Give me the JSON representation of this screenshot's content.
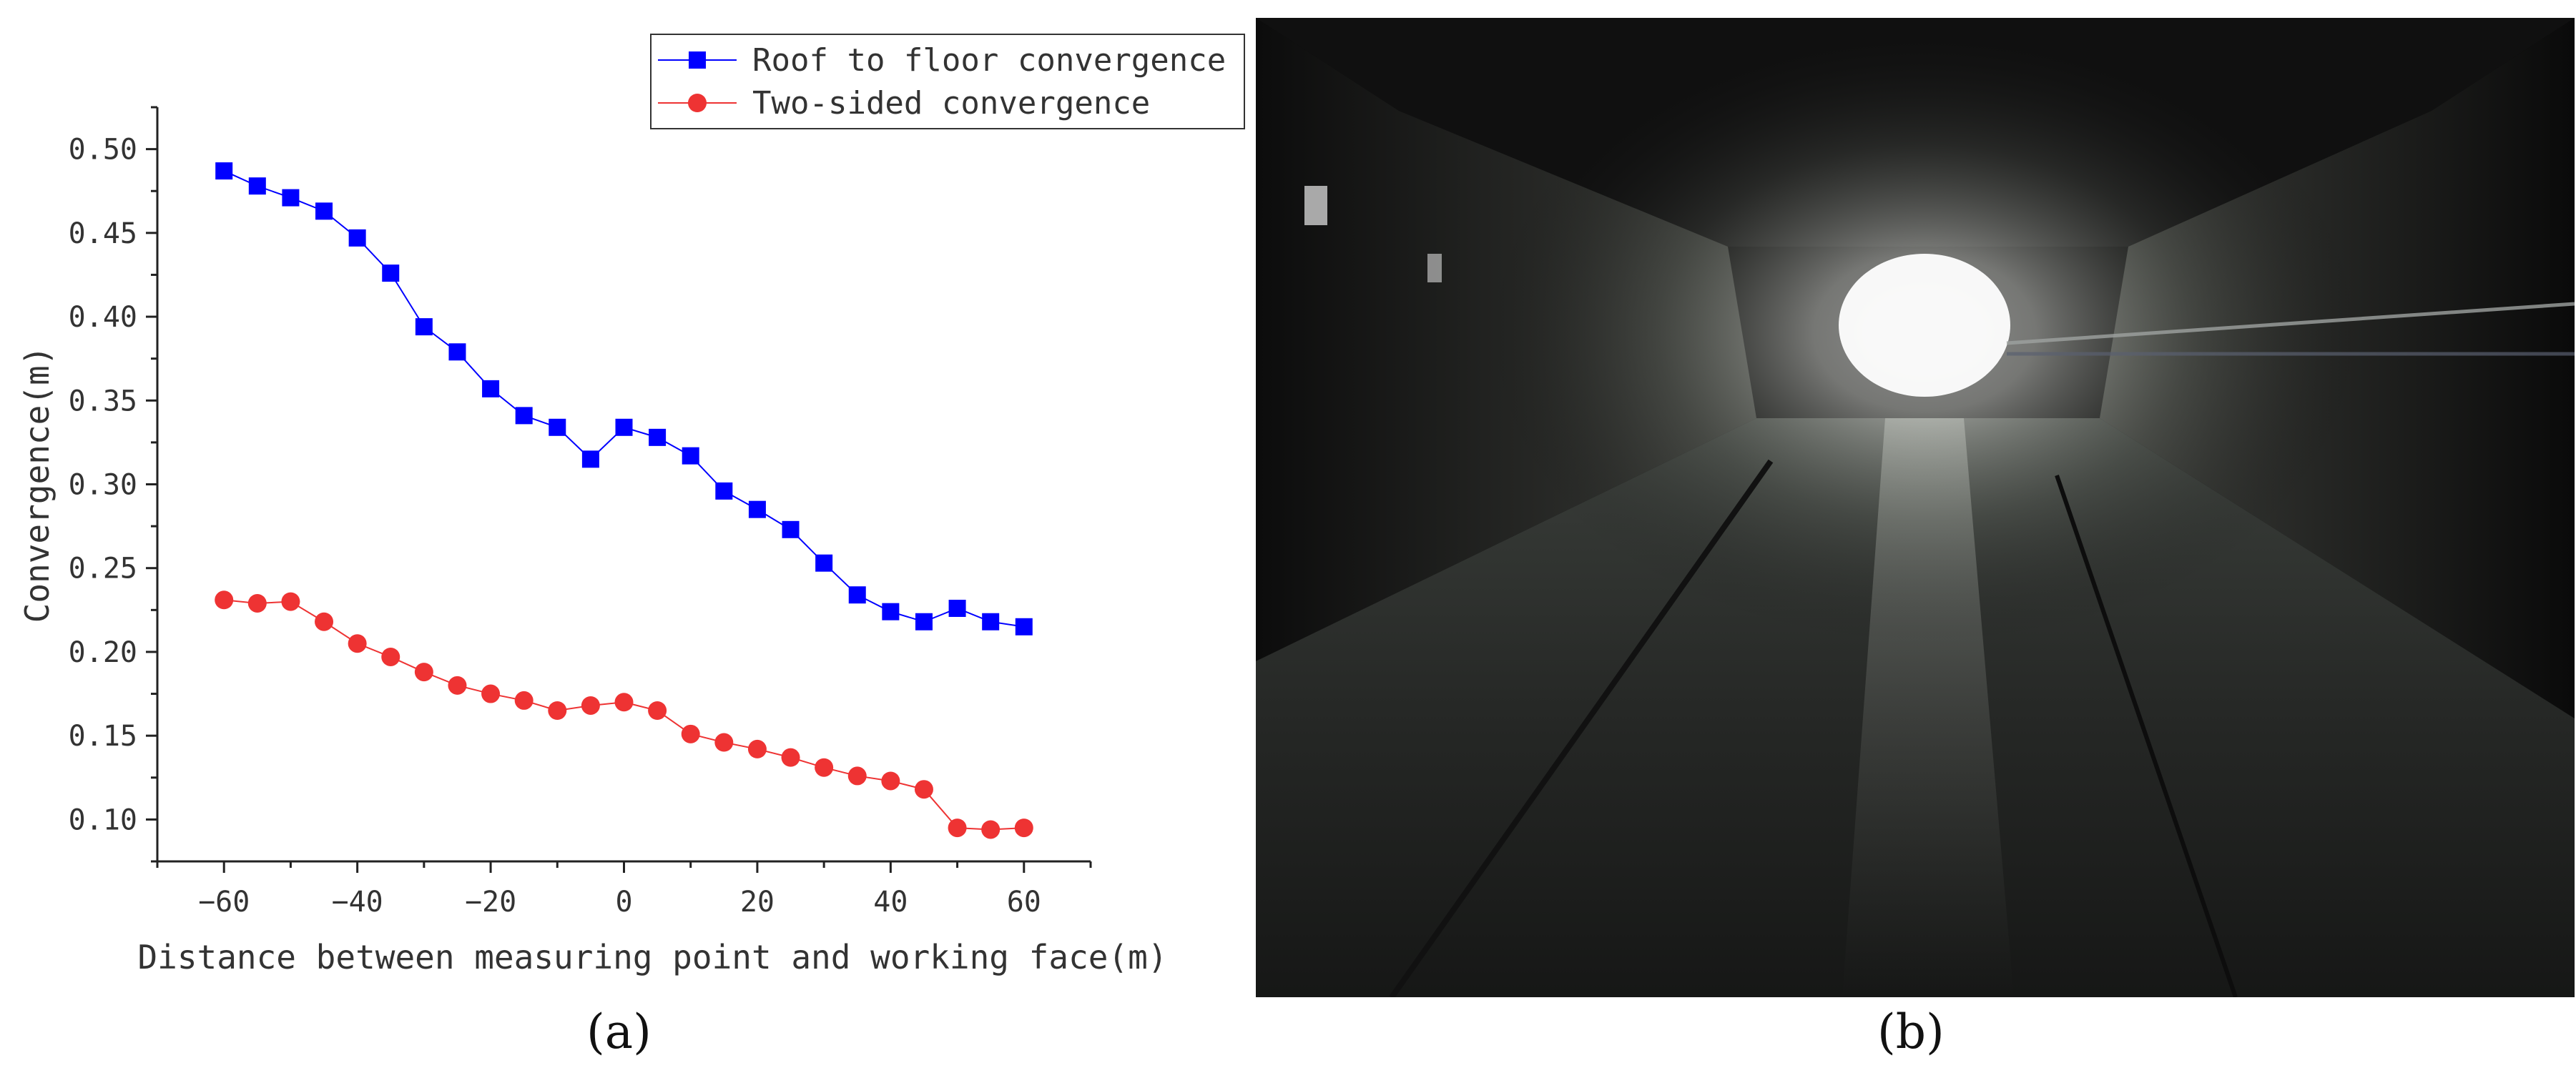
{
  "chart_data": {
    "type": "line",
    "xlabel": "Distance between measuring point and working face(m)",
    "ylabel": "Convergence(m)",
    "xlim": [
      -70,
      70
    ],
    "ylim": [
      0.075,
      0.525
    ],
    "xticks": [
      -60,
      -40,
      -20,
      0,
      20,
      40,
      60
    ],
    "yticks": [
      0.1,
      0.15,
      0.2,
      0.25,
      0.3,
      0.35,
      0.4,
      0.45,
      0.5
    ],
    "legend_position": "top-right",
    "x": [
      -60,
      -55,
      -50,
      -45,
      -40,
      -35,
      -30,
      -25,
      -20,
      -15,
      -10,
      -5,
      0,
      5,
      10,
      15,
      20,
      25,
      30,
      35,
      40,
      45,
      50,
      55,
      60
    ],
    "series": [
      {
        "name": "Roof to floor convergence",
        "color": "#0000ff",
        "marker": "square",
        "values": [
          0.487,
          0.478,
          0.471,
          0.463,
          0.447,
          0.426,
          0.394,
          0.379,
          0.357,
          0.341,
          0.334,
          0.315,
          0.334,
          0.328,
          0.317,
          0.296,
          0.285,
          0.273,
          0.253,
          0.234,
          0.224,
          0.218,
          0.226,
          0.218,
          0.215
        ]
      },
      {
        "name": "Two-sided convergence",
        "color": "#ee3333",
        "marker": "circle",
        "values": [
          0.231,
          0.229,
          0.23,
          0.218,
          0.205,
          0.197,
          0.188,
          0.18,
          0.175,
          0.171,
          0.165,
          0.168,
          0.17,
          0.165,
          0.151,
          0.146,
          0.142,
          0.137,
          0.131,
          0.126,
          0.123,
          0.118,
          0.095,
          0.094,
          0.095
        ]
      }
    ]
  },
  "captions": {
    "a": "(a)",
    "b": "(b)"
  }
}
